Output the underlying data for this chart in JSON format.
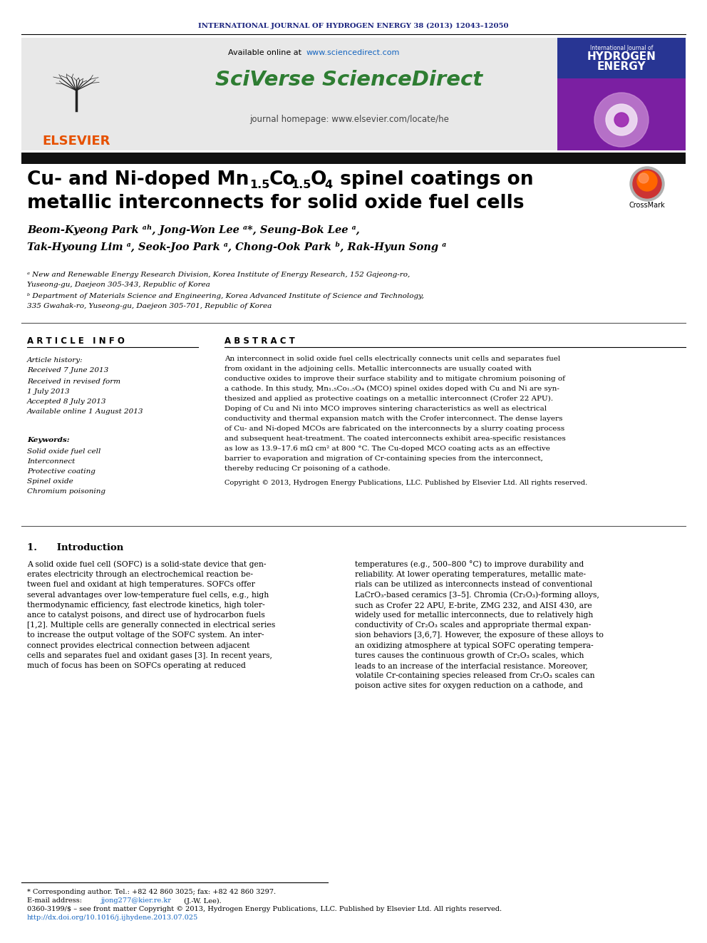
{
  "journal_header": "INTERNATIONAL JOURNAL OF HYDROGEN ENERGY 38 (2013) 12043–12050",
  "available_online": "Available online at ",
  "available_online_link": "www.sciencedirect.com",
  "sciverse_text": "SciVerse ScienceDirect",
  "journal_homepage": "journal homepage: www.elsevier.com/locate/he",
  "elsevier_text": "ELSEVIER",
  "title_line2": "metallic interconnects for solid oxide fuel cells",
  "authors": "Beom-Kyeong Park ᵃʰ, Jong-Won Lee ᵃ*, Seung-Bok Lee ᵃ,",
  "authors2": "Tak-Hyoung Lim ᵃ, Seok-Joo Park ᵃ, Chong-Ook Park ᵇ, Rak-Hyun Song ᵃ",
  "affil_a": "ᵃ New and Renewable Energy Research Division, Korea Institute of Energy Research, 152 Gajeong-ro,",
  "affil_a2": "Yuseong-gu, Daejeon 305-343, Republic of Korea",
  "affil_b": "ᵇ Department of Materials Science and Engineering, Korea Advanced Institute of Science and Technology,",
  "affil_b2": "335 Gwahak-ro, Yuseong-gu, Daejeon 305-701, Republic of Korea",
  "article_info_header": "A R T I C L E   I N F O",
  "abstract_header": "A B S T R A C T",
  "article_history_label": "Article history:",
  "received_label": "Received 7 June 2013",
  "received_revised": "Received in revised form",
  "received_revised2": "1 July 2013",
  "accepted": "Accepted 8 July 2013",
  "available": "Available online 1 August 2013",
  "keywords_label": "Keywords:",
  "kw1": "Solid oxide fuel cell",
  "kw2": "Interconnect",
  "kw3": "Protective coating",
  "kw4": "Spinel oxide",
  "kw5": "Chromium poisoning",
  "copyright_text": "Copyright © 2013, Hydrogen Energy Publications, LLC. Published by Elsevier Ltd. All rights reserved.",
  "section1_title": "1.      Introduction",
  "footnote_corresponding": "* Corresponding author. Tel.: +82 42 860 3025; fax: +82 42 860 3297.",
  "footnote_email_prefix": "E-mail address: ",
  "footnote_email_link": "jjong277@kier.re.kr",
  "footnote_email_suffix": " (J.-W. Lee).",
  "footnote_issn": "0360-3199/$ – see front matter Copyright © 2013, Hydrogen Energy Publications, LLC. Published by Elsevier Ltd. All rights reserved.",
  "footnote_doi": "http://dx.doi.org/10.1016/j.ijhydene.2013.07.025",
  "header_color": "#1a237e",
  "elsevier_color": "#e65100",
  "sciverse_color": "#2e7d32",
  "link_color": "#1565c0",
  "dark_bar_color": "#111111",
  "abstract_lines": [
    "An interconnect in solid oxide fuel cells electrically connects unit cells and separates fuel",
    "from oxidant in the adjoining cells. Metallic interconnects are usually coated with",
    "conductive oxides to improve their surface stability and to mitigate chromium poisoning of",
    "a cathode. In this study, Mn₁.₅Co₁.₅O₄ (MCO) spinel oxides doped with Cu and Ni are syn-",
    "thesized and applied as protective coatings on a metallic interconnect (Crofer 22 APU).",
    "Doping of Cu and Ni into MCO improves sintering characteristics as well as electrical",
    "conductivity and thermal expansion match with the Crofer interconnect. The dense layers",
    "of Cu- and Ni-doped MCOs are fabricated on the interconnects by a slurry coating process",
    "and subsequent heat-treatment. The coated interconnects exhibit area-specific resistances",
    "as low as 13.9–17.6 mΩ cm² at 800 °C. The Cu-doped MCO coating acts as an effective",
    "barrier to evaporation and migration of Cr-containing species from the interconnect,",
    "thereby reducing Cr poisoning of a cathode."
  ],
  "intro_left_lines": [
    "A solid oxide fuel cell (SOFC) is a solid-state device that gen-",
    "erates electricity through an electrochemical reaction be-",
    "tween fuel and oxidant at high temperatures. SOFCs offer",
    "several advantages over low-temperature fuel cells, e.g., high",
    "thermodynamic efficiency, fast electrode kinetics, high toler-",
    "ance to catalyst poisons, and direct use of hydrocarbon fuels",
    "[1,2]. Multiple cells are generally connected in electrical series",
    "to increase the output voltage of the SOFC system. An inter-",
    "connect provides electrical connection between adjacent",
    "cells and separates fuel and oxidant gases [3]. In recent years,",
    "much of focus has been on SOFCs operating at reduced"
  ],
  "intro_right_lines": [
    "temperatures (e.g., 500–800 °C) to improve durability and",
    "reliability. At lower operating temperatures, metallic mate-",
    "rials can be utilized as interconnects instead of conventional",
    "LaCrO₃-based ceramics [3–5]. Chromia (Cr₂O₃)-forming alloys,",
    "such as Crofer 22 APU, E-brite, ZMG 232, and AISI 430, are",
    "widely used for metallic interconnects, due to relatively high",
    "conductivity of Cr₂O₃ scales and appropriate thermal expan-",
    "sion behaviors [3,6,7]. However, the exposure of these alloys to",
    "an oxidizing atmosphere at typical SOFC operating tempera-",
    "tures causes the continuous growth of Cr₂O₃ scales, which",
    "leads to an increase of the interfacial resistance. Moreover,",
    "volatile Cr-containing species released from Cr₂O₃ scales can",
    "poison active sites for oxygen reduction on a cathode, and"
  ]
}
